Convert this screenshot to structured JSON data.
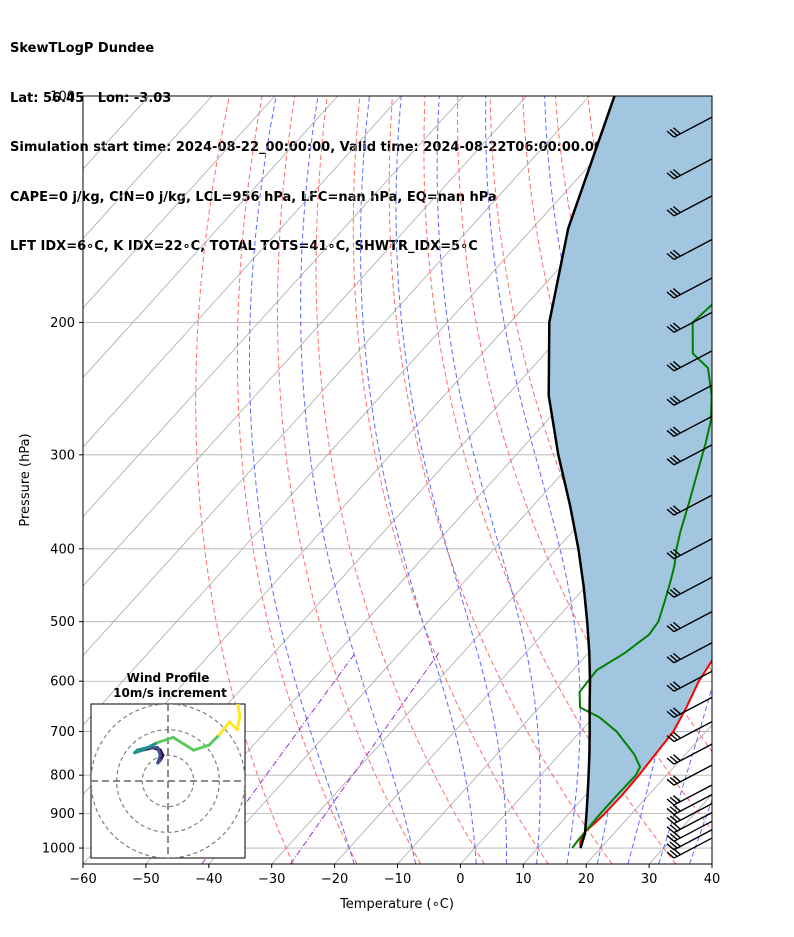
{
  "header": {
    "line1": "SkewTLogP Dundee",
    "line2": "Lat: 56.45   Lon: -3.03",
    "line3": "Simulation start time: 2024-08-22_00:00:00, Valid time: 2024-08-22T06:00:00.00",
    "line4": "CAPE=0 j/kg, CIN=0 j/kg, LCL=956 hPa, LFC=nan hPa, EQ=nan hPa",
    "line5": "LFT IDX=6∘C, K IDX=22∘C, TOTAL TOTS=41∘C, SHWTR_IDX=5∘C"
  },
  "chart_data": [
    {
      "type": "line",
      "title": "",
      "xlabel": "Temperature (∘C)",
      "ylabel": "Pressure (hPa)",
      "xlim": [
        -60,
        40
      ],
      "ylim": [
        1050,
        100
      ],
      "y_scale": "log",
      "skew": true,
      "x_ticks": [
        -60,
        -50,
        -40,
        -30,
        -20,
        -10,
        0,
        10,
        20,
        30,
        40
      ],
      "x_tick_labels": [
        "−60",
        "−50",
        "−40",
        "−30",
        "−20",
        "−10",
        "0",
        "10",
        "20",
        "30",
        "40"
      ],
      "y_ticks": [
        100,
        200,
        300,
        400,
        500,
        600,
        700,
        800,
        900,
        1000
      ],
      "y_tick_labels": [
        "100",
        "200",
        "300",
        "400",
        "500",
        "600",
        "700",
        "800",
        "900",
        "1000"
      ],
      "grid": true,
      "series": [
        {
          "key": "temperature",
          "color": "#ff0000",
          "points": [
            [
              1000,
              16.8
            ],
            [
              980,
              15.8
            ],
            [
              950,
              15.2
            ],
            [
              925,
              15.5
            ],
            [
              900,
              15.7
            ],
            [
              850,
              15.8
            ],
            [
              800,
              15.6
            ],
            [
              750,
              15.2
            ],
            [
              700,
              14.8
            ],
            [
              650,
              13.4
            ],
            [
              600,
              11.6
            ],
            [
              550,
              10.4
            ],
            [
              500,
              8.6
            ],
            [
              470,
              6.4
            ],
            [
              450,
              4.9
            ],
            [
              420,
              2.6
            ],
            [
              400,
              1.1
            ],
            [
              380,
              -0.7
            ],
            [
              360,
              -2.4
            ],
            [
              340,
              -4.1
            ],
            [
              320,
              -5.7
            ],
            [
              300,
              -6.8
            ],
            [
              290,
              -7.0
            ],
            [
              270,
              -6.1
            ],
            [
              260,
              -5.0
            ],
            [
              240,
              -2.5
            ],
            [
              220,
              1.1
            ],
            [
              200,
              4.3
            ],
            [
              190,
              6.0
            ],
            [
              180,
              7.5
            ],
            [
              160,
              9.0
            ],
            [
              140,
              11.3
            ],
            [
              125,
              14.8
            ],
            [
              110,
              20.0
            ],
            [
              100,
              24.5
            ]
          ]
        },
        {
          "key": "dewpoint",
          "color": "#008000",
          "points": [
            [
              1000,
              15.5
            ],
            [
              980,
              15.3
            ],
            [
              950,
              15.2
            ],
            [
              900,
              15.0
            ],
            [
              850,
              15.0
            ],
            [
              800,
              15.1
            ],
            [
              780,
              14.6
            ],
            [
              750,
              11.8
            ],
            [
              700,
              5.8
            ],
            [
              670,
              1.0
            ],
            [
              650,
              -3.5
            ],
            [
              620,
              -5.8
            ],
            [
              580,
              -6.2
            ],
            [
              550,
              -4.2
            ],
            [
              520,
              -3.0
            ],
            [
              500,
              -3.4
            ],
            [
              470,
              -5.3
            ],
            [
              440,
              -7.4
            ],
            [
              420,
              -9.0
            ],
            [
              400,
              -11.0
            ],
            [
              380,
              -12.8
            ],
            [
              350,
              -15.4
            ],
            [
              320,
              -18.3
            ],
            [
              290,
              -21.5
            ],
            [
              270,
              -24.0
            ],
            [
              250,
              -27.5
            ],
            [
              230,
              -32.0
            ],
            [
              220,
              -36.5
            ],
            [
              200,
              -41.0
            ],
            [
              180,
              -40.0
            ],
            [
              160,
              -40.0
            ],
            [
              140,
              -39.5
            ],
            [
              120,
              -40.0
            ],
            [
              100,
              -41.0
            ]
          ]
        },
        {
          "key": "parcel",
          "color": "#000000",
          "points": [
            [
              1000,
              16.8
            ],
            [
              956,
              15.4
            ],
            [
              900,
              12.8
            ],
            [
              850,
              10.3
            ],
            [
              800,
              7.6
            ],
            [
              750,
              4.7
            ],
            [
              700,
              1.5
            ],
            [
              650,
              -2.0
            ],
            [
              600,
              -5.7
            ],
            [
              550,
              -9.9
            ],
            [
              500,
              -14.7
            ],
            [
              450,
              -20.2
            ],
            [
              400,
              -26.6
            ],
            [
              350,
              -34.2
            ],
            [
              300,
              -43.3
            ],
            [
              250,
              -53.4
            ],
            [
              200,
              -63.8
            ],
            [
              150,
              -74.3
            ],
            [
              100,
              -86.0
            ]
          ]
        }
      ],
      "shaded_region": {
        "between": [
          "parcel",
          "temperature"
        ],
        "color": "#a3c6e0"
      },
      "reference_lines": {
        "isotherms": {
          "color": "#aaaaaa"
        },
        "dry_adiabats": {
          "color": "#ff6b6b"
        },
        "moist_adiabats": {
          "color": "#5b6bff"
        },
        "mixing_ratio": {
          "color": "#9933cc"
        }
      },
      "wind_barbs": {
        "color": "#000000",
        "pressures": [
          1000,
          975,
          950,
          925,
          900,
          875,
          850,
          800,
          750,
          700,
          650,
          600,
          550,
          500,
          450,
          400,
          350,
          300,
          275,
          250,
          225,
          200,
          180,
          160,
          140,
          125,
          110
        ]
      }
    },
    {
      "type": "scatter",
      "title": "Wind Profile",
      "subtitle": "10m/s increment",
      "xlim": [
        -30,
        30
      ],
      "ylim": [
        -30,
        30
      ],
      "rings": [
        10,
        20,
        30
      ],
      "hodograph": [
        [
          -10,
          12
        ],
        [
          -6,
          13
        ],
        [
          -3,
          12
        ],
        [
          -2,
          10
        ],
        [
          -3,
          8
        ],
        [
          -4,
          7
        ],
        [
          -3,
          10
        ],
        [
          -4,
          13
        ],
        [
          -8,
          13
        ],
        [
          -12,
          12
        ],
        [
          -13,
          11
        ],
        [
          -10,
          12
        ],
        [
          -4,
          15
        ],
        [
          2,
          17
        ],
        [
          10,
          12
        ],
        [
          16,
          14
        ],
        [
          20,
          18
        ],
        [
          24,
          23
        ],
        [
          27,
          20
        ],
        [
          28,
          25
        ],
        [
          27,
          31
        ]
      ],
      "colormap": [
        "#440154",
        "#3b528b",
        "#21918c",
        "#5ec962",
        "#fde725"
      ]
    }
  ]
}
